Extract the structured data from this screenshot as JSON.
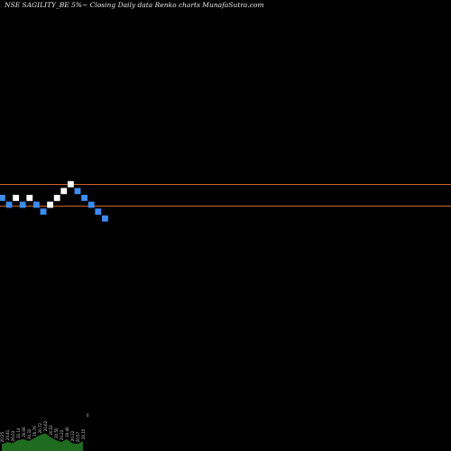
{
  "chart_data": {
    "type": "renko",
    "title": "NSE SAGILITY_BE 5%~  Closing Daily data  Renko  charts MunafaSutra.com",
    "reference_lines": [
      {
        "name": "upper",
        "color": "#c8642a"
      },
      {
        "name": "lower",
        "color": "#c8642a"
      }
    ],
    "bricks": [
      {
        "level": 0,
        "dir": "down"
      },
      {
        "level": -1,
        "dir": "down"
      },
      {
        "level": 0,
        "dir": "up"
      },
      {
        "level": -1,
        "dir": "down"
      },
      {
        "level": 0,
        "dir": "up"
      },
      {
        "level": -1,
        "dir": "down"
      },
      {
        "level": -2,
        "dir": "down"
      },
      {
        "level": -1,
        "dir": "up"
      },
      {
        "level": 0,
        "dir": "up"
      },
      {
        "level": 1,
        "dir": "up"
      },
      {
        "level": 2,
        "dir": "up"
      },
      {
        "level": 1,
        "dir": "down"
      },
      {
        "level": 0,
        "dir": "down"
      },
      {
        "level": -1,
        "dir": "down"
      },
      {
        "level": -2,
        "dir": "down"
      },
      {
        "level": -3,
        "dir": "down"
      }
    ],
    "colors": {
      "up": "#ffffff",
      "down": "#3d8cf2",
      "volume": "#1f6b1f",
      "background": "#000000"
    },
    "volume": [
      {
        "label": "20.25",
        "value": 0.35
      },
      {
        "label": "20.41",
        "value": 0.45
      },
      {
        "label": "20.03",
        "value": 0.4
      },
      {
        "label": "20.14",
        "value": 0.55
      },
      {
        "label": "20.06",
        "value": 0.6
      },
      {
        "label": "20.32",
        "value": 0.5
      },
      {
        "label": "20.76",
        "value": 0.65
      },
      {
        "label": "20.72",
        "value": 0.8
      },
      {
        "label": "20.62",
        "value": 0.9
      },
      {
        "label": "20.52",
        "value": 0.7
      },
      {
        "label": "20.50",
        "value": 0.55
      },
      {
        "label": "20.22",
        "value": 0.45
      },
      {
        "label": "20.46",
        "value": 0.6
      },
      {
        "label": "20.32",
        "value": 0.4
      },
      {
        "label": "20.57",
        "value": 0.35
      },
      {
        "label": "20.15",
        "value": 0.5
      }
    ],
    "volume_extra_label": "0"
  }
}
